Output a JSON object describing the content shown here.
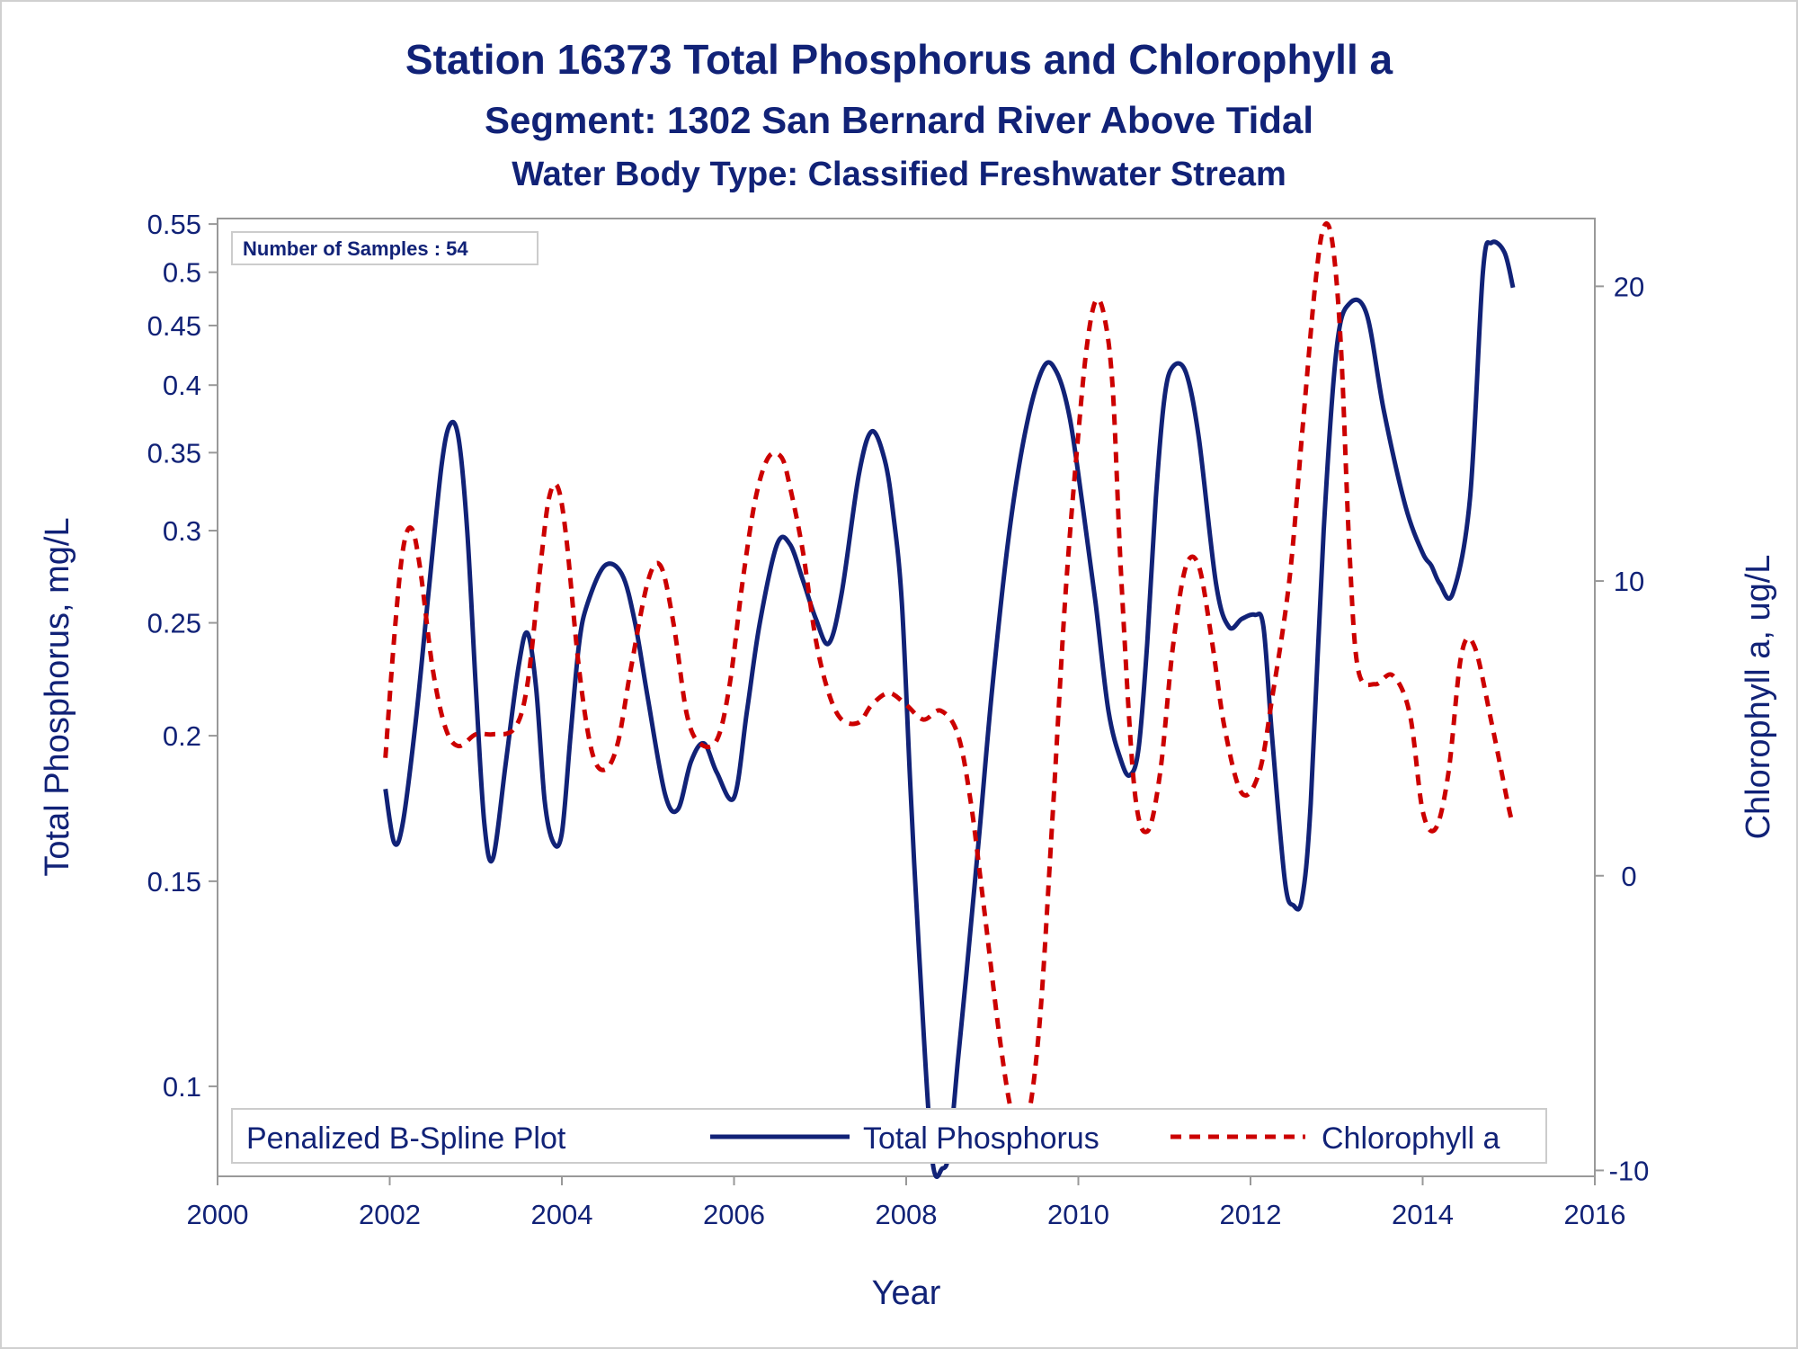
{
  "colors": {
    "text": "#112277",
    "phosphorus": "#112277",
    "chlorophyll": "#cc0000",
    "frame": "#999999"
  },
  "chart_data": {
    "type": "line",
    "title": "Station 16373  Total Phosphorus and Chlorophyll a",
    "subtitle1": "Segment: 1302  San Bernard River Above Tidal",
    "subtitle2": "Water Body Type: Classified Freshwater Stream",
    "xlabel": "Year",
    "ylabel_left": "Total Phosphorus, mg/L",
    "ylabel_right": "Chlorophyll a, ug/L",
    "x_ticks": [
      "2000",
      "2002",
      "2004",
      "2006",
      "2008",
      "2010",
      "2012",
      "2014",
      "2016"
    ],
    "y_left_ticks": [
      "0.1",
      "0.15",
      "0.2",
      "0.25",
      "0.3",
      "0.35",
      "0.4",
      "0.45",
      "0.5",
      "0.55"
    ],
    "y_right_ticks": [
      "-10",
      "0",
      "10",
      "20"
    ],
    "xlim": [
      2000,
      2016
    ],
    "y_left_scale": "log",
    "y_left_lim": [
      0.0837,
      0.556
    ],
    "y_right_lim": [
      -10.2,
      22.3
    ],
    "grid": false,
    "annotation": "Number of Samples : 54",
    "legend": {
      "title": "Penalized B-Spline Plot",
      "position": "bottom-inside",
      "items": [
        "Total Phosphorus",
        "Chlorophyll a"
      ]
    },
    "series": [
      {
        "name": "Total Phosphorus",
        "axis": "left",
        "style": "solid",
        "x": [
          2001.95,
          2002.05,
          2002.15,
          2002.3,
          2002.45,
          2002.6,
          2002.7,
          2002.8,
          2002.9,
          2003.0,
          2003.1,
          2003.2,
          2003.35,
          2003.5,
          2003.6,
          2003.7,
          2003.8,
          2003.9,
          2004.0,
          2004.1,
          2004.2,
          2004.3,
          2004.5,
          2004.7,
          2004.85,
          2005.0,
          2005.2,
          2005.35,
          2005.5,
          2005.65,
          2005.8,
          2006.0,
          2006.15,
          2006.3,
          2006.5,
          2006.65,
          2006.8,
          2006.95,
          2007.1,
          2007.25,
          2007.45,
          2007.6,
          2007.75,
          2007.85,
          2007.95,
          2008.05,
          2008.15,
          2008.3,
          2008.42,
          2008.5,
          2008.6,
          2008.7,
          2008.85,
          2009.0,
          2009.2,
          2009.4,
          2009.6,
          2009.75,
          2009.9,
          2010.05,
          2010.2,
          2010.35,
          2010.5,
          2010.6,
          2010.7,
          2010.8,
          2010.9,
          2011.0,
          2011.1,
          2011.25,
          2011.4,
          2011.6,
          2011.75,
          2011.9,
          2012.05,
          2012.15,
          2012.25,
          2012.4,
          2012.5,
          2012.6,
          2012.7,
          2012.85,
          2013.0,
          2013.15,
          2013.35,
          2013.55,
          2013.8,
          2014.0,
          2014.1,
          2014.2,
          2014.35,
          2014.55,
          2014.7,
          2014.8,
          2014.95,
          2015.05
        ],
        "y": [
          0.18,
          0.162,
          0.168,
          0.205,
          0.265,
          0.34,
          0.37,
          0.36,
          0.3,
          0.22,
          0.168,
          0.157,
          0.19,
          0.23,
          0.245,
          0.22,
          0.176,
          0.162,
          0.165,
          0.2,
          0.24,
          0.26,
          0.28,
          0.275,
          0.25,
          0.215,
          0.178,
          0.173,
          0.19,
          0.197,
          0.186,
          0.177,
          0.21,
          0.25,
          0.292,
          0.292,
          0.272,
          0.252,
          0.24,
          0.265,
          0.335,
          0.365,
          0.345,
          0.31,
          0.26,
          0.18,
          0.13,
          0.087,
          0.085,
          0.088,
          0.105,
          0.125,
          0.165,
          0.22,
          0.3,
          0.37,
          0.415,
          0.41,
          0.375,
          0.315,
          0.26,
          0.21,
          0.19,
          0.185,
          0.195,
          0.24,
          0.32,
          0.39,
          0.415,
          0.41,
          0.36,
          0.27,
          0.248,
          0.252,
          0.254,
          0.248,
          0.2,
          0.15,
          0.143,
          0.145,
          0.175,
          0.3,
          0.43,
          0.47,
          0.46,
          0.38,
          0.315,
          0.287,
          0.28,
          0.27,
          0.265,
          0.32,
          0.5,
          0.53,
          0.52,
          0.485
        ]
      },
      {
        "name": "Chlorophyll a",
        "axis": "right",
        "style": "dashed",
        "x": [
          2001.95,
          2002.05,
          2002.15,
          2002.25,
          2002.35,
          2002.5,
          2002.65,
          2002.8,
          2003.0,
          2003.2,
          2003.45,
          2003.6,
          2003.75,
          2003.85,
          2003.95,
          2004.05,
          2004.2,
          2004.35,
          2004.5,
          2004.65,
          2004.8,
          2005.0,
          2005.15,
          2005.3,
          2005.45,
          2005.6,
          2005.8,
          2005.95,
          2006.1,
          2006.25,
          2006.4,
          2006.55,
          2006.65,
          2006.8,
          2006.95,
          2007.1,
          2007.25,
          2007.45,
          2007.6,
          2007.8,
          2008.0,
          2008.2,
          2008.4,
          2008.6,
          2008.75,
          2008.9,
          2009.1,
          2009.25,
          2009.4,
          2009.55,
          2009.7,
          2009.85,
          2010.0,
          2010.1,
          2010.2,
          2010.3,
          2010.4,
          2010.5,
          2010.65,
          2010.8,
          2010.95,
          2011.1,
          2011.25,
          2011.4,
          2011.55,
          2011.7,
          2011.9,
          2012.1,
          2012.25,
          2012.45,
          2012.6,
          2012.75,
          2012.85,
          2012.95,
          2013.05,
          2013.15,
          2013.25,
          2013.45,
          2013.65,
          2013.85,
          2014.0,
          2014.15,
          2014.3,
          2014.45,
          2014.6,
          2014.8,
          2015.0,
          2015.05
        ],
        "y": [
          4,
          8,
          11,
          11.8,
          10.5,
          7,
          5,
          4.4,
          4.8,
          4.8,
          5,
          6.5,
          10.5,
          12.8,
          13.2,
          11.5,
          7,
          4.2,
          3.6,
          4.5,
          7,
          10,
          10.5,
          8.5,
          5.5,
          4.5,
          4.6,
          6.5,
          10,
          12.8,
          14.2,
          14.2,
          13.2,
          11,
          8,
          6.2,
          5.3,
          5.2,
          5.8,
          6.2,
          5.8,
          5.3,
          5.6,
          4.8,
          2.5,
          -1,
          -5.8,
          -8.3,
          -8.4,
          -5,
          2,
          9.5,
          15,
          18,
          19.5,
          19,
          16.5,
          10,
          3,
          1.5,
          3.5,
          7.8,
          10.5,
          10.5,
          8,
          5,
          2.8,
          3.5,
          6,
          10,
          15,
          20,
          22,
          21.5,
          18,
          11,
          7,
          6.5,
          6.8,
          5.5,
          2.2,
          1.6,
          3.5,
          7.5,
          7.8,
          5.2,
          2.3,
          1.8
        ]
      }
    ]
  }
}
